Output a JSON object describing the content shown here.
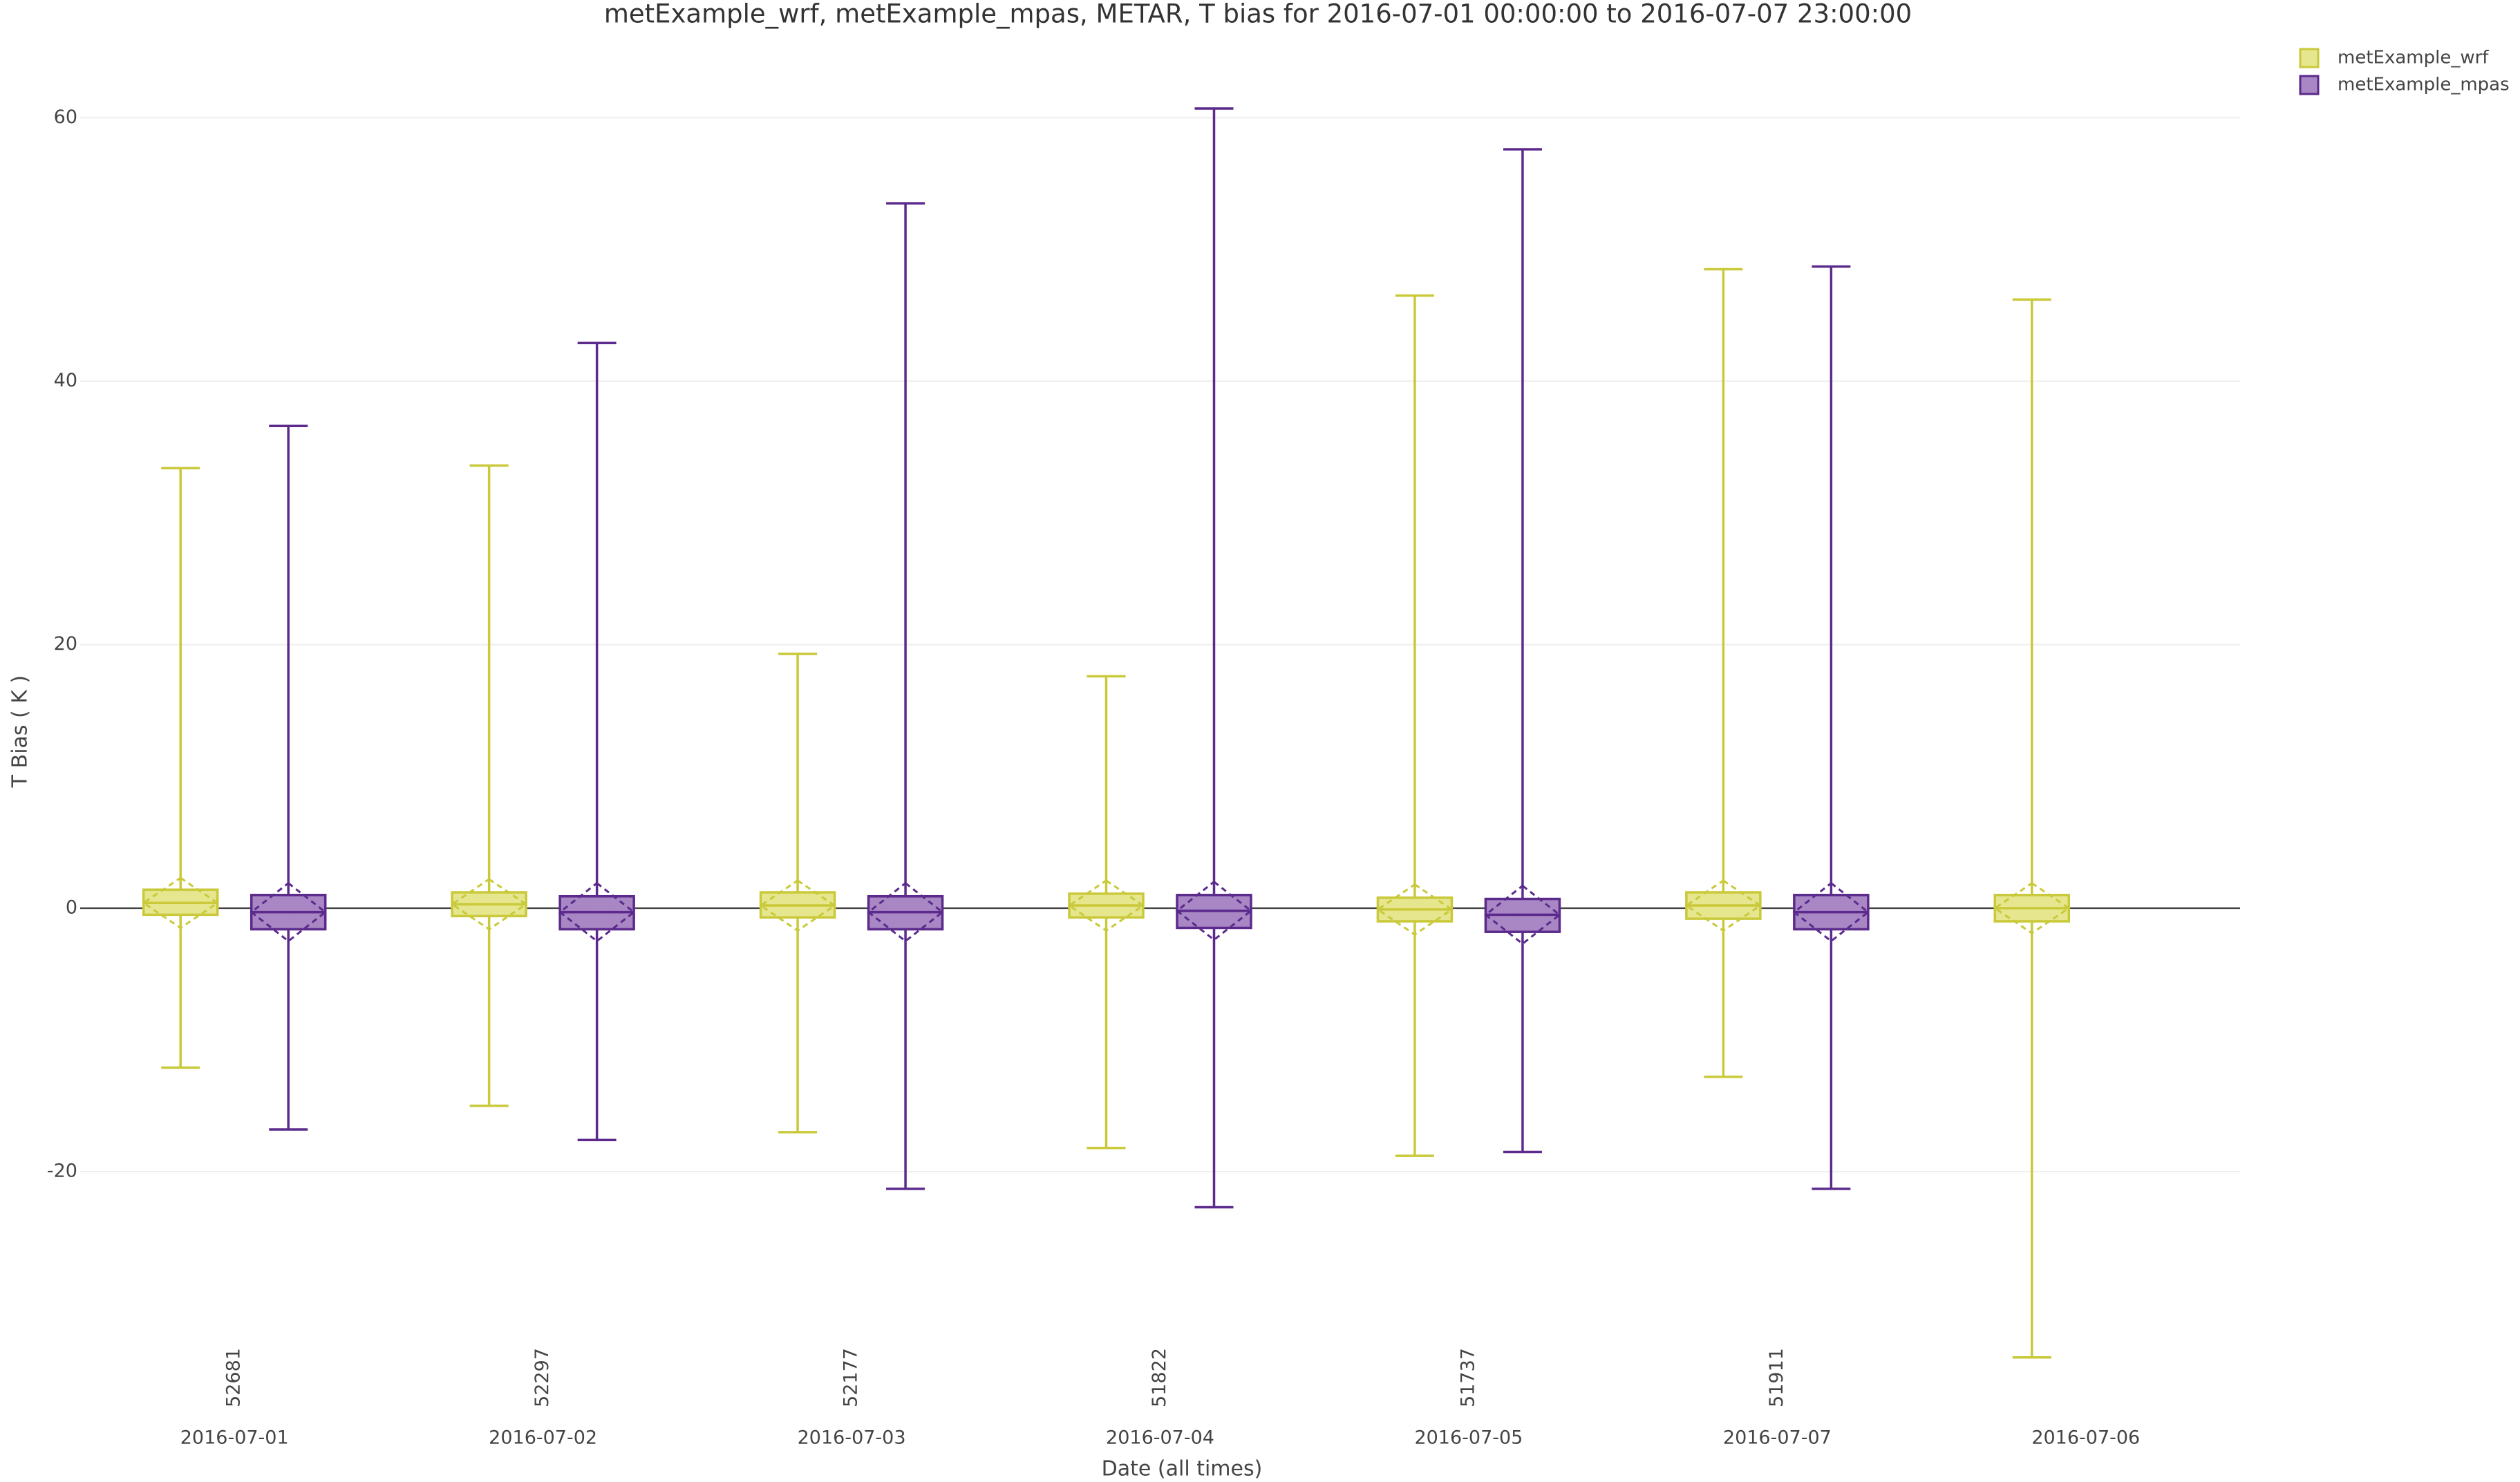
{
  "chart_data": {
    "type": "box",
    "title": "metExample_wrf, metExample_mpas, METAR, T bias for 2016-07-01 00:00:00 to 2016-07-07 23:00:00",
    "x_label": "Date (all times)",
    "y_label": "T Bias ( K )",
    "categories": [
      "2016-07-01",
      "2016-07-02",
      "2016-07-03",
      "2016-07-04",
      "2016-07-05",
      "2016-07-07",
      "2016-07-06"
    ],
    "counts": [
      52681,
      52297,
      52177,
      51822,
      51737,
      51911,
      null
    ],
    "ylim": [
      -36,
      65
    ],
    "yticks": [
      -20,
      0,
      20,
      40,
      60
    ],
    "grid": true,
    "legend": "top-right",
    "series": [
      {
        "name": "metExample_wrf",
        "color": "#c9c93a",
        "fill": "#e6e68f",
        "lowerfence": [
          -12.1,
          -15,
          -17,
          -18.2,
          -18.8,
          -12.8,
          -34.1
        ],
        "q1": [
          -0.5,
          -0.6,
          -0.7,
          -0.7,
          -1,
          -0.8,
          -1
        ],
        "median": [
          0.4,
          0.3,
          0.2,
          0.2,
          -0.1,
          0.2,
          0
        ],
        "q3": [
          1.4,
          1.2,
          1.2,
          1.1,
          0.8,
          1.2,
          1
        ],
        "upperfence": [
          33.4,
          33.6,
          19.3,
          17.6,
          46.5,
          48.5,
          46.2
        ],
        "mean": [
          0.4,
          0.3,
          0.2,
          0.2,
          -0.1,
          0.2,
          0
        ],
        "sd": [
          1.9,
          1.9,
          1.9,
          1.9,
          1.9,
          1.9,
          1.9
        ]
      },
      {
        "name": "metExample_mpas",
        "color": "#5b2a8c",
        "fill": "#a887c4",
        "lowerfence": [
          -16.8,
          -17.6,
          -21.3,
          -22.7,
          -18.5,
          -21.3,
          null
        ],
        "q1": [
          -1.6,
          -1.6,
          -1.6,
          -1.5,
          -1.8,
          -1.6,
          null
        ],
        "median": [
          -0.3,
          -0.3,
          -0.3,
          -0.2,
          -0.5,
          -0.3,
          null
        ],
        "q3": [
          1,
          0.9,
          0.9,
          1,
          0.7,
          1,
          null
        ],
        "upperfence": [
          36.6,
          42.9,
          53.5,
          60.7,
          57.6,
          48.7,
          null
        ],
        "mean": [
          -0.3,
          -0.3,
          -0.3,
          -0.2,
          -0.5,
          -0.3,
          null
        ],
        "sd": [
          2.2,
          2.2,
          2.2,
          2.2,
          2.2,
          2.2,
          null
        ]
      }
    ]
  }
}
